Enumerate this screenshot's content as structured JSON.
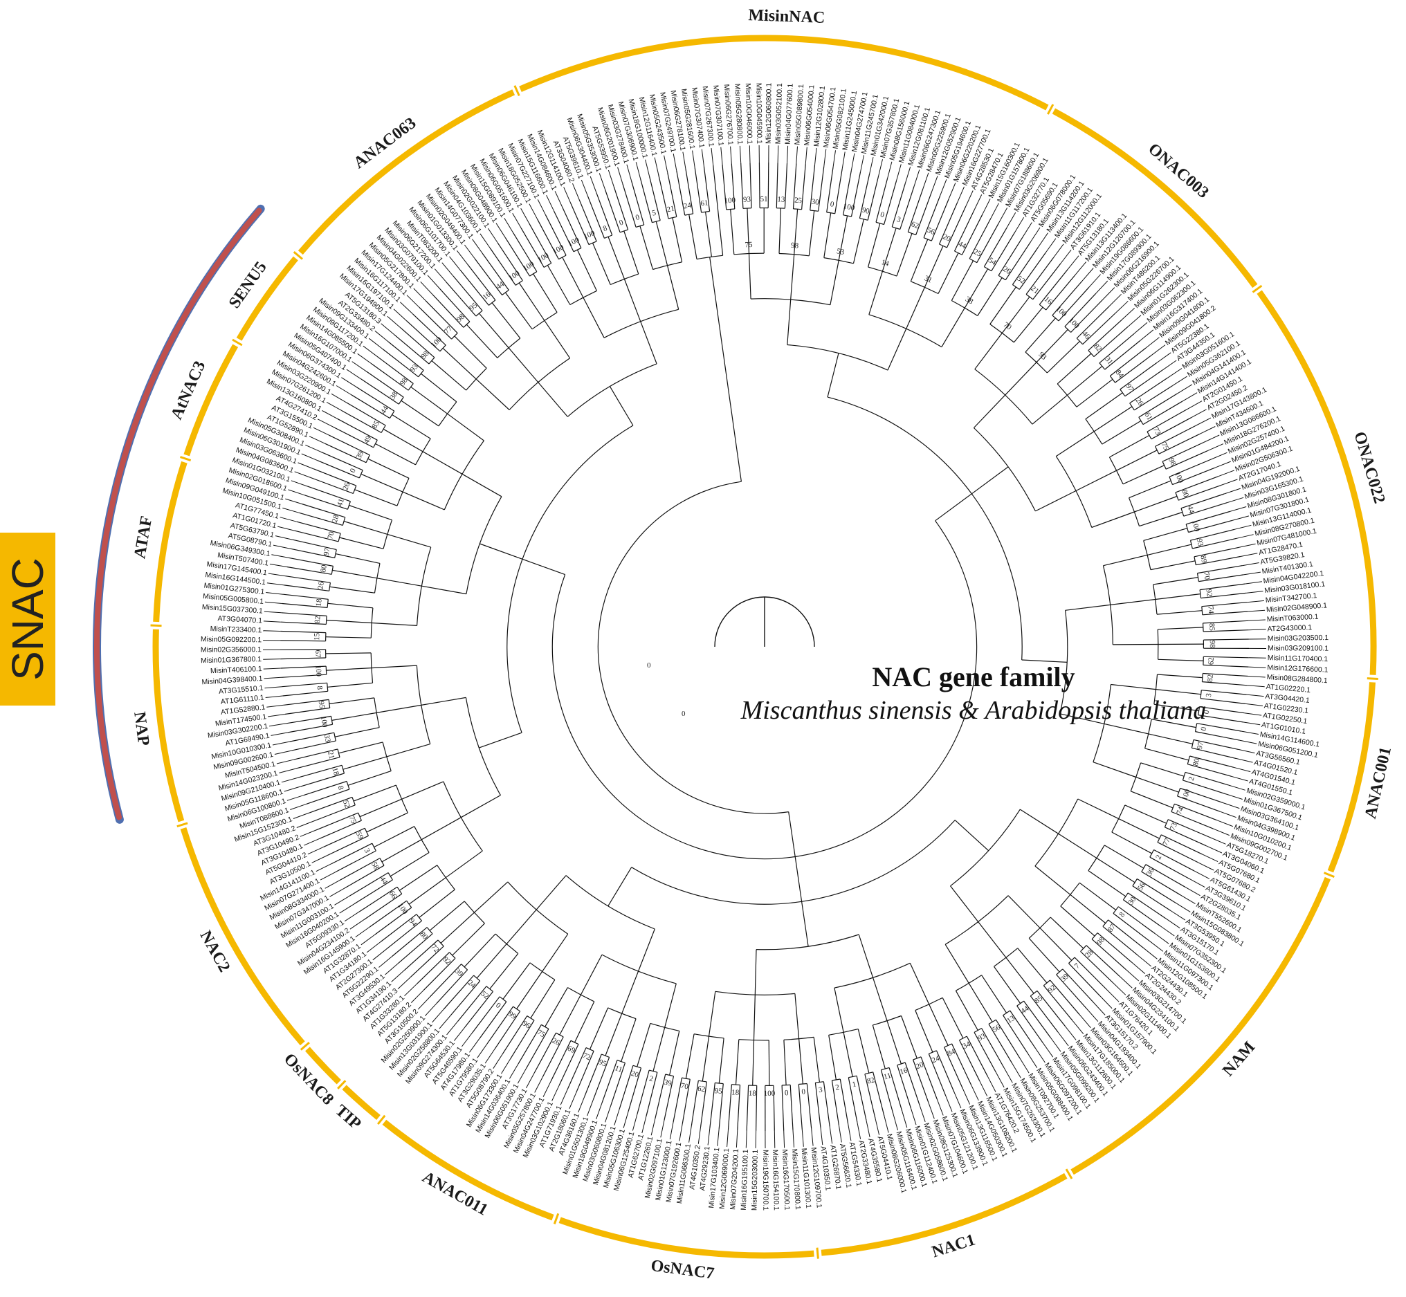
{
  "diagram": {
    "title": "NAC gene family",
    "subtitle": "Miscanthus sinensis & Arabidopsis thaliana",
    "group_label": "SNAC",
    "group_label_color": "#f5b800",
    "ring_color": "#f5b800",
    "bar_color": "#c0504d",
    "bar_border_color": "#4f6fb0",
    "subfamilies": [
      {
        "name": "MisinNAC",
        "from_deg": -24,
        "to_deg": 28
      },
      {
        "name": "ONAC003",
        "from_deg": 28,
        "to_deg": 54
      },
      {
        "name": "ONAC022",
        "from_deg": 54,
        "to_deg": 93
      },
      {
        "name": "ANAC001",
        "from_deg": 93,
        "to_deg": 112
      },
      {
        "name": "NAM",
        "from_deg": 112,
        "to_deg": 150
      },
      {
        "name": "NAC1",
        "from_deg": 150,
        "to_deg": 175
      },
      {
        "name": "OsNAC7",
        "from_deg": 175,
        "to_deg": 200
      },
      {
        "name": "ANAC011",
        "from_deg": 200,
        "to_deg": 219
      },
      {
        "name": "TIP",
        "from_deg": 219,
        "to_deg": 224
      },
      {
        "name": "OsNAC8",
        "from_deg": 224,
        "to_deg": 229
      },
      {
        "name": "NAC2",
        "from_deg": 229,
        "to_deg": 253
      },
      {
        "name": "NAP",
        "from_deg": 253,
        "to_deg": 272
      },
      {
        "name": "ATAF",
        "from_deg": 272,
        "to_deg": 288
      },
      {
        "name": "AtNAC3",
        "from_deg": 288,
        "to_deg": 300
      },
      {
        "name": "SENU5",
        "from_deg": 300,
        "to_deg": 310
      },
      {
        "name": "ANAC063",
        "from_deg": 310,
        "to_deg": 336
      }
    ],
    "snac_span_deg": [
      255,
      311
    ],
    "leaves": [
      "Misin07G307100.1",
      "Misin06G276700.1",
      "Misin05G280800.1",
      "Misin10G046000.1",
      "Misin10G045900.1",
      "Misin12G060800.1",
      "Misin03G052100.1",
      "Misin04G077600.1",
      "Misin05G089800.1",
      "Misin06G054000.1",
      "Misin12G102800.1",
      "Misin06G054700.1",
      "Misin05G082100.1",
      "Misin11G245000.1",
      "Misin04G274700.1",
      "Misin11G245700.1",
      "Misin01G342000.1",
      "Misin07G357800.1",
      "Misin08G156000.1",
      "Misin11G084000.1",
      "Misin12G081100.1",
      "Misin06G247300.1",
      "Misin05G225900.1",
      "Misin12G052900.1",
      "Misin05G194600.1",
      "Misin06G220200.1",
      "Misin16G227700.1",
      "AT4G28530.1",
      "AT5G28470.1",
      "Misin15G160300.1",
      "Misin01G157800.1",
      "Misin07G188600.1",
      "Misin03G206900.1",
      "AT1G32770.1",
      "AT5G05690.1",
      "Misin06G078000.1",
      "Misin13G114200.1",
      "Misin11G117200.1",
      "Misin12G112000.1",
      "AT3G61910.1",
      "AT5G13180.1",
      "Misin13G113400.1",
      "Misin12G120700.1",
      "Misin19G086600.1",
      "Misin17G089300.1",
      "Misin06G216900.1",
      "MisinT486200.1",
      "Misin05G226700.1",
      "Misin06G114900.1",
      "Misin01G262300.1",
      "Misin03G062300.1",
      "Misin16G317400.1",
      "Misin09G041800.1",
      "Misin09G041800.2",
      "AT5G22380.1",
      "AT3G44350.1",
      "Misin03G051600.1",
      "Misin05G362100.1",
      "Misin04G141400.1",
      "Misin14G141400.1",
      "AT2G01450.1",
      "AT2G02450.2",
      "Misin17G143800.1",
      "MisinT434600.1",
      "Misin13G086600.1",
      "Misin18G276200.1",
      "Misin02G257400.1",
      "Misin01G484200.1",
      "Misin02G506300.1",
      "AT2G17040.1",
      "Misin04G192000.1",
      "Misin03G165300.1",
      "Misin08G301800.1",
      "Misin07G301800.1",
      "Misin13G114000.1",
      "Misin08G270800.1",
      "Misin07G481000.1",
      "AT1G28470.1",
      "AT5G39820.1",
      "MisinT401300.1",
      "Misin04G042200.1",
      "Misin03G018100.1",
      "MisinT342700.1",
      "Misin02G048900.1",
      "MisinT063000.1",
      "AT2G43000.1",
      "Misin03G203500.1",
      "Misin03G209100.1",
      "Misin11G170400.1",
      "Misin12G176600.1",
      "Misin08G284800.1",
      "AT1G02220.1",
      "AT3G04420.1",
      "AT1G02230.1",
      "AT1G02250.1",
      "AT1G01010.1",
      "Misin14G114600.1",
      "Misin06G051200.1",
      "AT3G56560.1",
      "AT4G01520.1",
      "AT4G01540.1",
      "AT4G01550.1",
      "Misin02G359000.1",
      "Misin01G367500.1",
      "Misin03G364100.1",
      "Misin04G398900.1",
      "Misin10G010200.1",
      "Misin09G002700.1",
      "AT5G18270.1",
      "AT3G04060.1",
      "AT5G07680.1",
      "AT5G07680.2",
      "AT5G61430.1",
      "AT3G39610.1",
      "AT2G28035.1",
      "MisinT552600.1",
      "Misin15G083800.1",
      "AT3G53950.1",
      "AT3G15170.1",
      "Misin07G352300.1",
      "Misin01G153600.1",
      "Misin11G097300.1",
      "Misin12G108500.1",
      "AT2G24430.1",
      "AT2G24430.2",
      "Misin03G214700.1",
      "Misin04G234100.1",
      "Misin02G111400.1",
      "AT1G76420.1",
      "Misin01G157900.1",
      "AT3G15170.2",
      "Misin04G193400.1",
      "Misin03G164500.1",
      "Misin17G185000.1",
      "Misin13G112600.1",
      "Misin06G243400.1",
      "Misin05G099200.1",
      "Misin17G098100.1",
      "Misin06G097200.1",
      "Misin05G098400.1",
      "MisinT092700.1",
      "Misin08G253700.1",
      "Misin07G263300.1",
      "Misin15G174500.1",
      "AT1G76420.2",
      "Misin13G108200.1",
      "Misin14G050300.1",
      "Misin13G116500.1",
      "Misin06G133900.1",
      "Misin05G121200.1",
      "Misin07G104600.1",
      "Misin08G125300.1",
      "Misin02G058600.1",
      "Misin01G112400.1",
      "Misin06G116000.1",
      "Misin05G116400.1",
      "Misin08G206000.1",
      "AT5G04410.1",
      "AT4G35580.1",
      "AT2G33480.1",
      "AT1G54330.1",
      "AT5G56620.1",
      "AT1G26870.1",
      "AT4G10350.1",
      "Misin12G109700.1",
      "Misin11G101300.1",
      "Misin15G170800.1",
      "Misin16G170500.1",
      "Misin16G154100.1",
      "Misin19G150700.1",
      "Misin15G203000.1",
      "Misin16G195100.1",
      "Misin07G204200.1",
      "Misin12G069000.1",
      "Misin17G103400.1",
      "AT4G29230.1",
      "AT4G10350.2",
      "Misin11G066300.1",
      "Misin07G192600.1",
      "Misin01G123000.1",
      "Misin02G097100.1",
      "AT1G12260.1",
      "AT1G62700.1",
      "Misin06G125400.1",
      "Misin05G106300.1",
      "Misin04G081200.1",
      "Misin03G060800.1",
      "Misin19G049900.1",
      "Misin01G501300.1",
      "AT4G36160.1",
      "AT2G18060.1",
      "AT1G71930.1",
      "Misin03G102900.1",
      "Misin04G247700.1",
      "Misin05G257800.1",
      "AT3G17730.1",
      "Misin06G051900.1",
      "Misin14G036400.1",
      "Misin06G173300.1",
      "AT5G08790.2",
      "AT3G29035.1",
      "AT1G79580.1",
      "AT4G17980.1",
      "AT5G46590.1",
      "AT5G64530.1",
      "Misin09G274300.1",
      "Misin02G258800.1",
      "Misin13G031900.1",
      "Misin02G250900.1",
      "AT3G10500.2",
      "AT5G13180.2",
      "AT1G33280.1",
      "AT4G27410.3",
      "AT1G34190.1",
      "AT3G49530.1",
      "AT5G22290.1",
      "AT2G27300.1",
      "AT1G34180.1",
      "AT1G32870.1",
      "Misin16G145900.1",
      "Misin04G234100.2",
      "AT5G09330.1",
      "Misin16G040200.1",
      "Misin11G003100.1",
      "Misin07G347000.1",
      "Misin08G334000.1",
      "Misin07G271400.1",
      "Misin14G141100.1",
      "AT3G10500.1",
      "AT5G04410.2",
      "AT3G10480.1",
      "AT3G10490.2",
      "AT3G10480.2",
      "Misin15G152300.1",
      "MisinT088600.1",
      "Misin06G100800.1",
      "Misin05G118600.1",
      "Misin09G210400.1",
      "Misin14G023200.1",
      "MisinT504500.1",
      "Misin09G002600.1",
      "Misin10G010300.1",
      "AT1G69490.1",
      "Misin03G302200.1",
      "MisinT174500.1",
      "AT1G52880.1",
      "AT1G61110.1",
      "AT3G15510.1",
      "Misin04G398400.1",
      "MisinT406100.1",
      "Misin01G367800.1",
      "Misin02G356000.1",
      "Misin05G092200.1",
      "MisinT233400.1",
      "AT3G04070.1",
      "Misin15G037300.1",
      "Misin05G005800.1",
      "Misin01G275300.1",
      "Misin16G144500.1",
      "Misin17G145400.1",
      "MisinT507400.1",
      "Misin06G349300.1",
      "AT5G08790.1",
      "AT5G63790.1",
      "AT1G01720.1",
      "AT1G77450.1",
      "Misin10G051500.1",
      "Misin09G049100.1",
      "Misin02G018600.1",
      "Misin01G032100.1",
      "Misin04G083600.1",
      "Misin03G063600.1",
      "Misin06G301900.1",
      "Misin05G308400.1",
      "AT1G52890.1",
      "AT3G15500.1",
      "AT4G27410.2",
      "Misin13G160800.1",
      "Misin07G261200.1",
      "Misin03G220900.1",
      "Misin04G242600.1",
      "Misin06G374300.1",
      "Misin05G407400.1",
      "Misin16G107000.1",
      "Misin14G085500.1",
      "Misin09G117200.1",
      "Misin09G133400.1",
      "AT2G33480.2",
      "AT5G13180.3",
      "Misin17G194900.1",
      "Misin16G197100.1",
      "Misin16G117100.1",
      "Misin17G124400.1",
      "Misin05G217800.1",
      "Misin04G022600.1",
      "Misin03G079100.1",
      "Misin06G217200.1",
      "MisinT083200.1",
      "Misin06G101700.1",
      "Misin01G013300.1",
      "Misin02G049400.1",
      "Misin14G077300.1",
      "Misin04G103600.1",
      "Misin02G022100.1",
      "Misin08G048900.1",
      "Misin15G089100.1",
      "Misin06G051600.1",
      "Misin06G046100.1",
      "Misin18G052500.1",
      "Misin07G227100.1",
      "Misin15G116600.1",
      "Misin14G084600.1",
      "Misin12G114100.1",
      "AT3G04060.2",
      "AT5G39610.1",
      "Misin06G304400.1",
      "Misin05G353000.1",
      "AT5G53950.1",
      "Misin06G201900.1",
      "Misin03G278400.1",
      "Misin07G306900.1",
      "Misin18G100000.1",
      "Misin12G116400.1",
      "Misin05G243500.1",
      "Misin07G249700.1",
      "Misin06G278100.1",
      "Misin05G281600.1",
      "Misin07G307400.1",
      "Misin07G267300.1"
    ],
    "bootstrap_values": [
      "100",
      "93",
      "51",
      "13",
      "25",
      "30",
      "0",
      "100",
      "90",
      "0",
      "3",
      "62",
      "56",
      "20",
      "44",
      "25",
      "54",
      "26",
      "52",
      "21",
      "16",
      "100",
      "100",
      "46",
      "82",
      "31",
      "84",
      "97",
      "26",
      "61",
      "73",
      "75",
      "98",
      "100",
      "80",
      "44",
      "100",
      "93",
      "89",
      "70",
      "92",
      "74",
      "85",
      "98",
      "62",
      "82",
      "3",
      "0",
      "0",
      "97",
      "80",
      "2",
      "100",
      "74",
      "73",
      "77",
      "2",
      "36",
      "56",
      "30",
      "8",
      "87",
      "98",
      "28",
      "7",
      "39",
      "92",
      "85",
      "44",
      "13",
      "56",
      "93",
      "34",
      "84",
      "24",
      "20",
      "16",
      "11",
      "82",
      "1",
      "2",
      "3",
      "0",
      "0",
      "100",
      "18",
      "18",
      "95",
      "62",
      "70",
      "39",
      "2",
      "20",
      "11",
      "95",
      "72",
      "69",
      "26",
      "75",
      "96",
      "99",
      "0",
      "52",
      "24",
      "39",
      "92",
      "72",
      "80",
      "94",
      "100",
      "66",
      "44",
      "58",
      "3",
      "59",
      "75",
      "52",
      "8",
      "18",
      "21",
      "33",
      "100",
      "95",
      "8",
      "100",
      "67",
      "15",
      "82",
      "18",
      "26",
      "80",
      "97",
      "70",
      "28",
      "41",
      "26",
      "0",
      "39",
      "49",
      "85",
      "44",
      "38",
      "98",
      "93",
      "98",
      "100",
      "77",
      "98",
      "95",
      "16",
      "44",
      "100",
      "100",
      "100",
      "100",
      "100",
      "100",
      "8",
      "0",
      "0",
      "5",
      "21",
      "24",
      "61",
      "75",
      "98",
      "53",
      "14",
      "31",
      "38",
      "70",
      "93"
    ],
    "root_labels": [
      "0",
      "0"
    ]
  }
}
